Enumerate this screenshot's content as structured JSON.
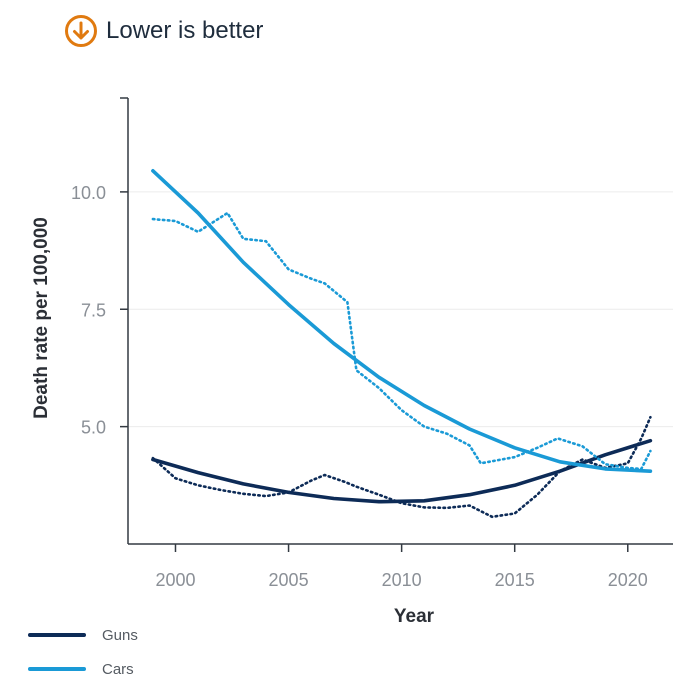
{
  "badge": {
    "text": "Lower is better",
    "icon": "arrow-down-circle-icon",
    "color": "#e07a10"
  },
  "chart_data": {
    "type": "line",
    "xlabel": "Year",
    "ylabel": "Death rate per 100,000",
    "xlim": [
      1997.9,
      2022
    ],
    "ylim": [
      2.5,
      12.0
    ],
    "x_ticks": [
      2000,
      2005,
      2010,
      2015,
      2020
    ],
    "x_tick_labels": [
      "2000",
      "2005",
      "2010",
      "2015",
      "2020"
    ],
    "y_ticks": [
      5.0,
      7.5,
      10.0
    ],
    "y_tick_labels": [
      "5.0",
      "7.5",
      "10.0"
    ],
    "grid": "horizontal",
    "legend_position": "bottom-left",
    "series": [
      {
        "name": "Guns",
        "color": "#0d2b57",
        "observed": {
          "x": [
            1999,
            2000,
            2001,
            2002,
            2003,
            2004,
            2005,
            2006,
            2006.6,
            2007.5,
            2008,
            2009,
            2010,
            2011,
            2012,
            2013,
            2014,
            2015,
            2016,
            2017,
            2018,
            2019,
            2020,
            2020.6,
            2021
          ],
          "y": [
            4.33,
            3.9,
            3.75,
            3.65,
            3.57,
            3.52,
            3.6,
            3.85,
            3.97,
            3.82,
            3.72,
            3.55,
            3.37,
            3.28,
            3.27,
            3.32,
            3.08,
            3.15,
            3.55,
            4.05,
            4.3,
            4.12,
            4.22,
            4.75,
            5.2
          ]
        },
        "trend": {
          "x": [
            1999,
            2001,
            2003,
            2005,
            2007,
            2009,
            2011,
            2013,
            2015,
            2017,
            2019,
            2021
          ],
          "y": [
            4.3,
            4.02,
            3.78,
            3.6,
            3.47,
            3.4,
            3.42,
            3.55,
            3.75,
            4.05,
            4.4,
            4.7
          ]
        }
      },
      {
        "name": "Cars",
        "color": "#1a9ad6",
        "observed": {
          "x": [
            1999,
            2000,
            2001,
            2002.3,
            2003,
            2004,
            2005,
            2006,
            2006.6,
            2007.6,
            2008,
            2009,
            2010,
            2011,
            2012,
            2013,
            2013.5,
            2015,
            2016,
            2016.9,
            2018,
            2019,
            2020,
            2020.6,
            2021
          ],
          "y": [
            9.42,
            9.38,
            9.15,
            9.55,
            9.0,
            8.95,
            8.35,
            8.15,
            8.05,
            7.65,
            6.2,
            5.82,
            5.35,
            5.0,
            4.85,
            4.6,
            4.22,
            4.35,
            4.55,
            4.75,
            4.58,
            4.2,
            4.12,
            4.1,
            4.48
          ]
        },
        "trend": {
          "x": [
            1999,
            2001,
            2003,
            2005,
            2007,
            2009,
            2011,
            2013,
            2015,
            2017,
            2019,
            2021
          ],
          "y": [
            10.45,
            9.55,
            8.5,
            7.6,
            6.77,
            6.05,
            5.45,
            4.95,
            4.55,
            4.25,
            4.1,
            4.05
          ]
        }
      }
    ]
  }
}
